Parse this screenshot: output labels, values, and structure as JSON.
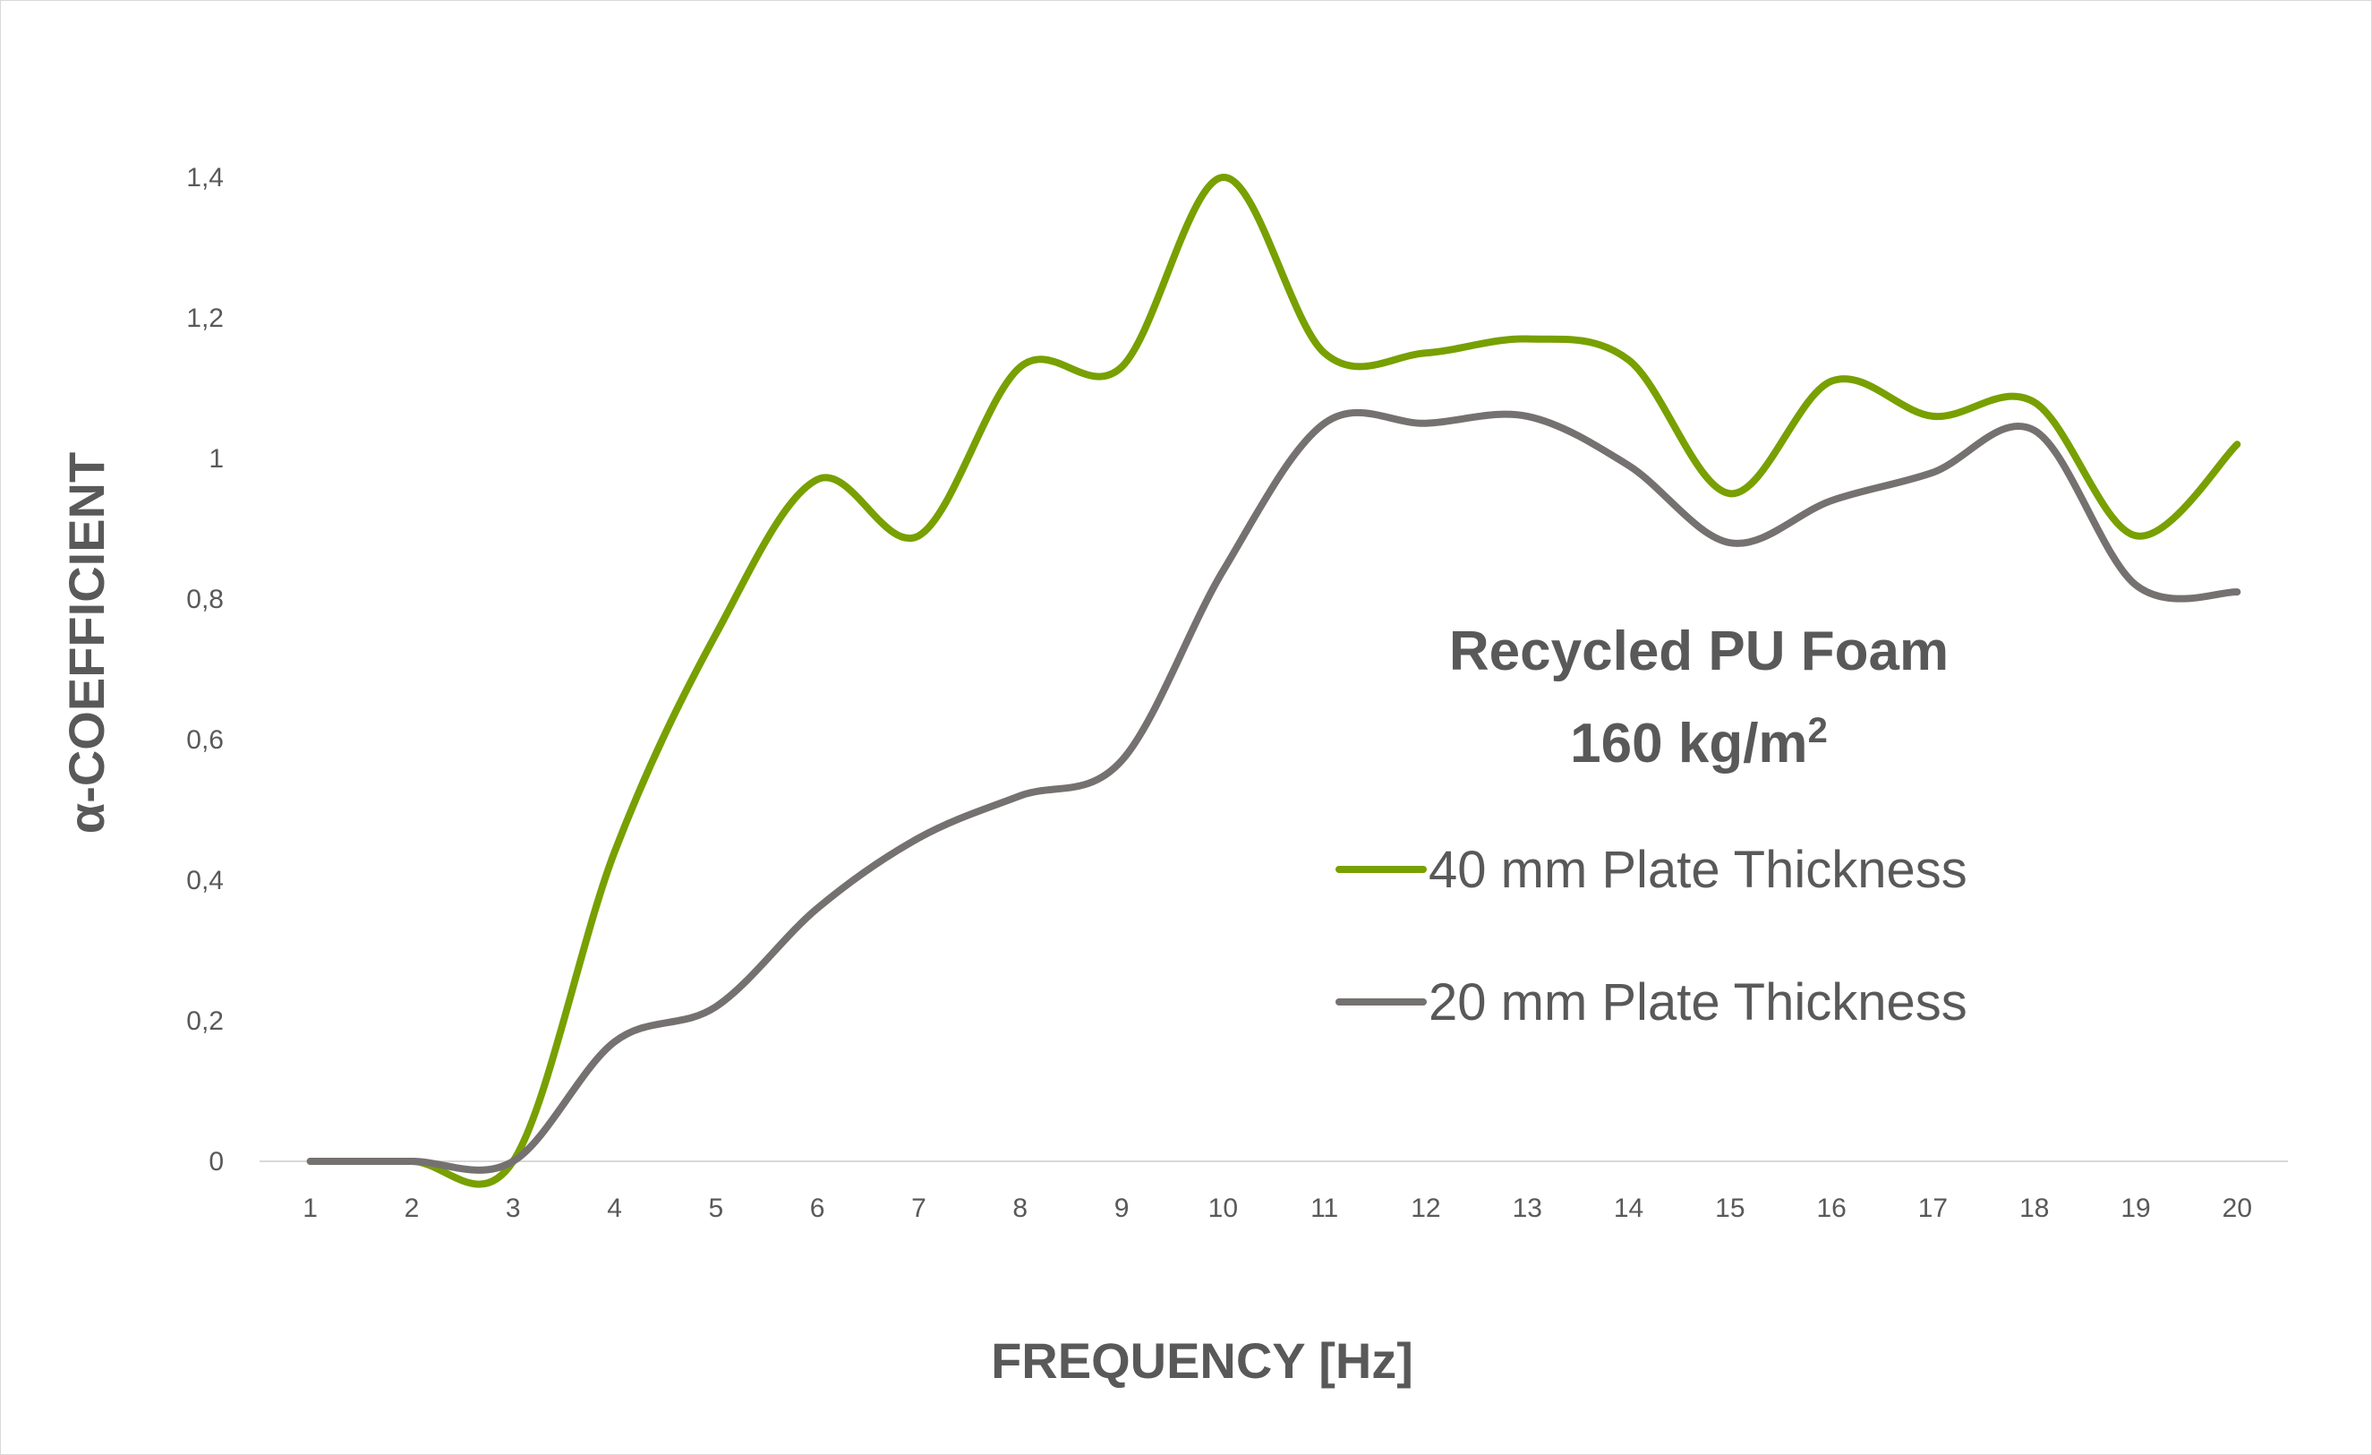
{
  "chart_data": {
    "type": "line",
    "xlabel": "FREQUENCY [Hz]",
    "ylabel": "α-COEFFICIENT",
    "categories": [
      "1",
      "2",
      "3",
      "4",
      "5",
      "6",
      "7",
      "8",
      "9",
      "10",
      "11",
      "12",
      "13",
      "14",
      "15",
      "16",
      "17",
      "18",
      "19",
      "20"
    ],
    "yticks": [
      "0",
      "0,2",
      "0,4",
      "0,6",
      "0,8",
      "1",
      "1,2",
      "1,4"
    ],
    "ylim": [
      0,
      1.4
    ],
    "grid": false,
    "smooth": true,
    "annotation": {
      "line1": "Recycled PU Foam",
      "line2_main": "160 kg/m",
      "line2_sup": "2"
    },
    "legend_position": "right",
    "series": [
      {
        "name": "40 mm Plate Thickness",
        "color": "#77a000",
        "values": [
          0,
          0,
          0,
          0.44,
          0.75,
          0.97,
          0.89,
          1.13,
          1.13,
          1.4,
          1.15,
          1.15,
          1.17,
          1.14,
          0.95,
          1.11,
          1.06,
          1.08,
          0.89,
          1.02
        ]
      },
      {
        "name": "20 mm Plate Thickness",
        "color": "#767171",
        "values": [
          0,
          0,
          0,
          0.17,
          0.22,
          0.36,
          0.46,
          0.52,
          0.57,
          0.84,
          1.05,
          1.05,
          1.06,
          0.99,
          0.88,
          0.94,
          0.98,
          1.04,
          0.82,
          0.81
        ]
      }
    ]
  }
}
